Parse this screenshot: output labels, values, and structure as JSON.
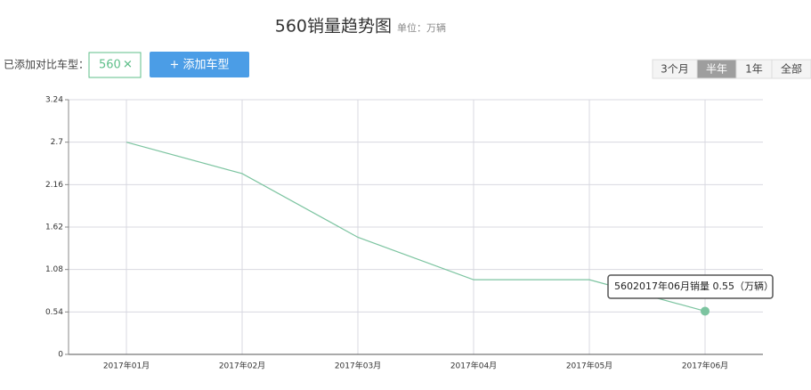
{
  "ui": {
    "compare_label": "已添加对比车型：",
    "remove": "✕",
    "add_button": "+ 添加车型",
    "ranges": [
      "3个月",
      "半年",
      "1年",
      "全部"
    ],
    "active_range": 1
  },
  "chart_data": {
    "type": "line",
    "title": "560销量趋势图",
    "subtitle": "单位：万辆",
    "categories": [
      "2017年01月",
      "2017年02月",
      "2017年03月",
      "2017年04月",
      "2017年05月",
      "2017年06月"
    ],
    "series": [
      {
        "name": "560",
        "color": "#7cc4a0",
        "values": [
          2.7,
          2.3,
          1.49,
          0.95,
          0.95,
          0.55
        ]
      }
    ],
    "ylim": [
      0,
      3.24
    ],
    "yticks": [
      0,
      0.54,
      1.08,
      1.62,
      2.16,
      2.7,
      3.24
    ],
    "grid": true,
    "tooltip": "5602017年06月销量 0.55（万辆）"
  }
}
